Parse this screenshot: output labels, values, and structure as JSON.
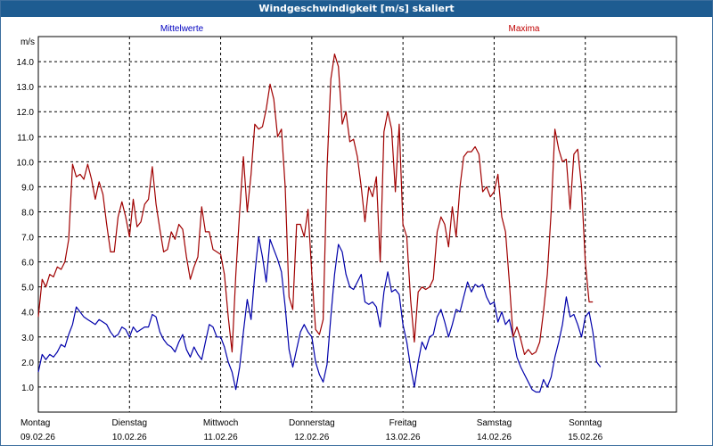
{
  "window": {
    "title": "Windgeschwindigkeit [m/s] skaliert"
  },
  "chart_data": {
    "type": "line",
    "title": "Windgeschwindigkeit [m/s] skaliert",
    "ylabel": "m/s",
    "xlabel": "",
    "ylim": [
      0,
      15
    ],
    "grid": true,
    "legend": [
      "Mittelwerte",
      "Maxima"
    ],
    "yticks": [
      "1.0",
      "2.0",
      "3.0",
      "4.0",
      "5.0",
      "6.0",
      "7.0",
      "8.0",
      "9.0",
      "10.0",
      "11.0",
      "12.0",
      "13.0",
      "14.0"
    ],
    "days": [
      {
        "name": "Montag",
        "date": "09.02.26"
      },
      {
        "name": "Dienstag",
        "date": "10.02.26"
      },
      {
        "name": "Mittwoch",
        "date": "11.02.26"
      },
      {
        "name": "Donnerstag",
        "date": "12.02.26"
      },
      {
        "name": "Freitag",
        "date": "13.02.26"
      },
      {
        "name": "Samstag",
        "date": "14.02.26"
      },
      {
        "name": "Sonntag",
        "date": "15.02.26"
      }
    ],
    "x_unit": "hours since Montag 09.02.26 00:00",
    "xlim": [
      0,
      168
    ],
    "series": [
      {
        "name": "Mittelwerte",
        "color": "#0000aa",
        "points": [
          [
            0,
            1.6
          ],
          [
            1,
            2.3
          ],
          [
            2,
            2.1
          ],
          [
            3,
            2.3
          ],
          [
            4,
            2.2
          ],
          [
            5,
            2.4
          ],
          [
            6,
            2.7
          ],
          [
            7,
            2.6
          ],
          [
            8,
            3.1
          ],
          [
            9,
            3.5
          ],
          [
            10,
            4.2
          ],
          [
            11,
            4.0
          ],
          [
            12,
            3.8
          ],
          [
            13,
            3.7
          ],
          [
            14,
            3.6
          ],
          [
            15,
            3.5
          ],
          [
            16,
            3.7
          ],
          [
            17,
            3.6
          ],
          [
            18,
            3.5
          ],
          [
            19,
            3.2
          ],
          [
            20,
            3.0
          ],
          [
            21,
            3.1
          ],
          [
            22,
            3.4
          ],
          [
            23,
            3.3
          ],
          [
            24,
            3.0
          ],
          [
            25,
            3.4
          ],
          [
            26,
            3.2
          ],
          [
            27,
            3.3
          ],
          [
            28,
            3.4
          ],
          [
            29,
            3.4
          ],
          [
            30,
            3.9
          ],
          [
            31,
            3.8
          ],
          [
            32,
            3.2
          ],
          [
            33,
            2.9
          ],
          [
            34,
            2.7
          ],
          [
            35,
            2.6
          ],
          [
            36,
            2.4
          ],
          [
            37,
            2.8
          ],
          [
            38,
            3.1
          ],
          [
            39,
            2.5
          ],
          [
            40,
            2.2
          ],
          [
            41,
            2.6
          ],
          [
            42,
            2.3
          ],
          [
            43,
            2.1
          ],
          [
            44,
            2.8
          ],
          [
            45,
            3.5
          ],
          [
            46,
            3.4
          ],
          [
            47,
            3.0
          ],
          [
            48,
            3.0
          ],
          [
            49,
            2.6
          ],
          [
            50,
            2.0
          ],
          [
            51,
            1.6
          ],
          [
            52,
            0.9
          ],
          [
            53,
            1.8
          ],
          [
            54,
            3.2
          ],
          [
            55,
            4.5
          ],
          [
            56,
            3.7
          ],
          [
            57,
            5.5
          ],
          [
            58,
            7.0
          ],
          [
            59,
            6.2
          ],
          [
            60,
            5.2
          ],
          [
            61,
            6.9
          ],
          [
            62,
            6.5
          ],
          [
            63,
            6.1
          ],
          [
            64,
            5.6
          ],
          [
            65,
            4.2
          ],
          [
            66,
            2.5
          ],
          [
            67,
            1.8
          ],
          [
            68,
            2.5
          ],
          [
            69,
            3.2
          ],
          [
            70,
            3.5
          ],
          [
            71,
            3.2
          ],
          [
            72,
            3.0
          ],
          [
            73,
            2.0
          ],
          [
            74,
            1.5
          ],
          [
            75,
            1.2
          ],
          [
            76,
            1.9
          ],
          [
            77,
            3.8
          ],
          [
            78,
            5.5
          ],
          [
            79,
            6.7
          ],
          [
            80,
            6.4
          ],
          [
            81,
            5.5
          ],
          [
            82,
            5.0
          ],
          [
            83,
            4.9
          ],
          [
            84,
            5.2
          ],
          [
            85,
            5.5
          ],
          [
            86,
            4.4
          ],
          [
            87,
            4.3
          ],
          [
            88,
            4.4
          ],
          [
            89,
            4.2
          ],
          [
            90,
            3.4
          ],
          [
            91,
            4.8
          ],
          [
            92,
            5.6
          ],
          [
            93,
            4.8
          ],
          [
            94,
            4.9
          ],
          [
            95,
            4.7
          ],
          [
            96,
            3.5
          ],
          [
            97,
            2.8
          ],
          [
            98,
            1.8
          ],
          [
            99,
            1.0
          ],
          [
            100,
            2.0
          ],
          [
            101,
            2.8
          ],
          [
            102,
            2.5
          ],
          [
            103,
            3.0
          ],
          [
            104,
            3.1
          ],
          [
            105,
            3.8
          ],
          [
            106,
            4.1
          ],
          [
            107,
            3.6
          ],
          [
            108,
            3.0
          ],
          [
            109,
            3.5
          ],
          [
            110,
            4.1
          ],
          [
            111,
            4.0
          ],
          [
            112,
            4.6
          ],
          [
            113,
            5.2
          ],
          [
            114,
            4.8
          ],
          [
            115,
            5.1
          ],
          [
            116,
            5.0
          ],
          [
            117,
            5.1
          ],
          [
            118,
            4.6
          ],
          [
            119,
            4.3
          ],
          [
            120,
            4.4
          ],
          [
            121,
            3.6
          ],
          [
            122,
            4.0
          ],
          [
            123,
            3.5
          ],
          [
            124,
            3.7
          ],
          [
            125,
            3.0
          ],
          [
            126,
            2.2
          ],
          [
            127,
            1.8
          ],
          [
            128,
            1.5
          ],
          [
            129,
            1.2
          ],
          [
            130,
            0.9
          ],
          [
            131,
            0.8
          ],
          [
            132,
            0.8
          ],
          [
            133,
            1.3
          ],
          [
            134,
            1.0
          ],
          [
            135,
            1.4
          ],
          [
            136,
            2.2
          ],
          [
            137,
            2.8
          ],
          [
            138,
            3.5
          ],
          [
            139,
            4.6
          ],
          [
            140,
            3.8
          ],
          [
            141,
            3.9
          ],
          [
            142,
            3.5
          ],
          [
            143,
            3.0
          ],
          [
            144,
            3.8
          ],
          [
            145,
            4.0
          ],
          [
            146,
            3.2
          ],
          [
            147,
            2.0
          ],
          [
            148,
            1.8
          ]
        ]
      },
      {
        "name": "Maxima",
        "color": "#a00000",
        "points": [
          [
            0,
            3.8
          ],
          [
            1,
            5.3
          ],
          [
            2,
            5.0
          ],
          [
            3,
            5.5
          ],
          [
            4,
            5.4
          ],
          [
            5,
            5.8
          ],
          [
            6,
            5.7
          ],
          [
            7,
            6.0
          ],
          [
            8,
            6.9
          ],
          [
            9,
            9.9
          ],
          [
            10,
            9.4
          ],
          [
            11,
            9.5
          ],
          [
            12,
            9.3
          ],
          [
            13,
            9.9
          ],
          [
            14,
            9.3
          ],
          [
            15,
            8.5
          ],
          [
            16,
            9.2
          ],
          [
            17,
            8.7
          ],
          [
            18,
            7.5
          ],
          [
            19,
            6.4
          ],
          [
            20,
            6.4
          ],
          [
            21,
            7.8
          ],
          [
            22,
            8.4
          ],
          [
            23,
            7.8
          ],
          [
            24,
            7.0
          ],
          [
            25,
            8.5
          ],
          [
            26,
            7.4
          ],
          [
            27,
            7.6
          ],
          [
            28,
            8.3
          ],
          [
            29,
            8.5
          ],
          [
            30,
            9.8
          ],
          [
            31,
            8.3
          ],
          [
            32,
            7.3
          ],
          [
            33,
            6.4
          ],
          [
            34,
            6.5
          ],
          [
            35,
            7.2
          ],
          [
            36,
            6.9
          ],
          [
            37,
            7.5
          ],
          [
            38,
            7.3
          ],
          [
            39,
            6.2
          ],
          [
            40,
            5.3
          ],
          [
            41,
            5.8
          ],
          [
            42,
            6.2
          ],
          [
            43,
            8.2
          ],
          [
            44,
            7.2
          ],
          [
            45,
            7.2
          ],
          [
            46,
            6.5
          ],
          [
            47,
            6.4
          ],
          [
            48,
            6.3
          ],
          [
            49,
            5.5
          ],
          [
            50,
            3.8
          ],
          [
            51,
            2.4
          ],
          [
            52,
            5.5
          ],
          [
            53,
            8.0
          ],
          [
            54,
            10.2
          ],
          [
            55,
            8.0
          ],
          [
            56,
            9.5
          ],
          [
            57,
            11.5
          ],
          [
            58,
            11.3
          ],
          [
            59,
            11.4
          ],
          [
            60,
            12.1
          ],
          [
            61,
            13.1
          ],
          [
            62,
            12.5
          ],
          [
            63,
            11.0
          ],
          [
            64,
            11.3
          ],
          [
            65,
            9.0
          ],
          [
            66,
            4.6
          ],
          [
            67,
            4.1
          ],
          [
            68,
            7.5
          ],
          [
            69,
            7.5
          ],
          [
            70,
            7.0
          ],
          [
            71,
            8.1
          ],
          [
            72,
            5.5
          ],
          [
            73,
            3.3
          ],
          [
            74,
            3.1
          ],
          [
            75,
            3.7
          ],
          [
            76,
            9.7
          ],
          [
            77,
            13.3
          ],
          [
            78,
            14.3
          ],
          [
            79,
            13.8
          ],
          [
            80,
            11.5
          ],
          [
            81,
            12.0
          ],
          [
            82,
            10.8
          ],
          [
            83,
            10.9
          ],
          [
            84,
            10.2
          ],
          [
            85,
            9.0
          ],
          [
            86,
            7.6
          ],
          [
            87,
            9.0
          ],
          [
            88,
            8.6
          ],
          [
            89,
            9.4
          ],
          [
            90,
            6.0
          ],
          [
            91,
            11.2
          ],
          [
            92,
            12.0
          ],
          [
            93,
            11.3
          ],
          [
            94,
            8.8
          ],
          [
            95,
            11.5
          ],
          [
            96,
            7.5
          ],
          [
            97,
            7.0
          ],
          [
            98,
            4.5
          ],
          [
            99,
            2.8
          ],
          [
            100,
            4.8
          ],
          [
            101,
            5.0
          ],
          [
            102,
            4.9
          ],
          [
            103,
            5.0
          ],
          [
            104,
            5.3
          ],
          [
            105,
            7.2
          ],
          [
            106,
            7.8
          ],
          [
            107,
            7.5
          ],
          [
            108,
            6.6
          ],
          [
            109,
            8.2
          ],
          [
            110,
            7.0
          ],
          [
            111,
            9.0
          ],
          [
            112,
            10.2
          ],
          [
            113,
            10.4
          ],
          [
            114,
            10.4
          ],
          [
            115,
            10.6
          ],
          [
            116,
            10.3
          ],
          [
            117,
            8.8
          ],
          [
            118,
            9.0
          ],
          [
            119,
            8.6
          ],
          [
            120,
            8.8
          ],
          [
            121,
            9.5
          ],
          [
            122,
            7.8
          ],
          [
            123,
            7.2
          ],
          [
            124,
            5.2
          ],
          [
            125,
            3.0
          ],
          [
            126,
            3.4
          ],
          [
            127,
            2.9
          ],
          [
            128,
            2.3
          ],
          [
            129,
            2.5
          ],
          [
            130,
            2.3
          ],
          [
            131,
            2.4
          ],
          [
            132,
            2.8
          ],
          [
            133,
            4.0
          ],
          [
            134,
            5.5
          ],
          [
            135,
            8.0
          ],
          [
            136,
            11.3
          ],
          [
            137,
            10.5
          ],
          [
            138,
            10.0
          ],
          [
            139,
            10.1
          ],
          [
            140,
            8.1
          ],
          [
            141,
            10.3
          ],
          [
            142,
            10.5
          ],
          [
            143,
            9.0
          ],
          [
            144,
            6.0
          ],
          [
            145,
            4.4
          ],
          [
            146,
            4.4
          ]
        ]
      }
    ]
  }
}
